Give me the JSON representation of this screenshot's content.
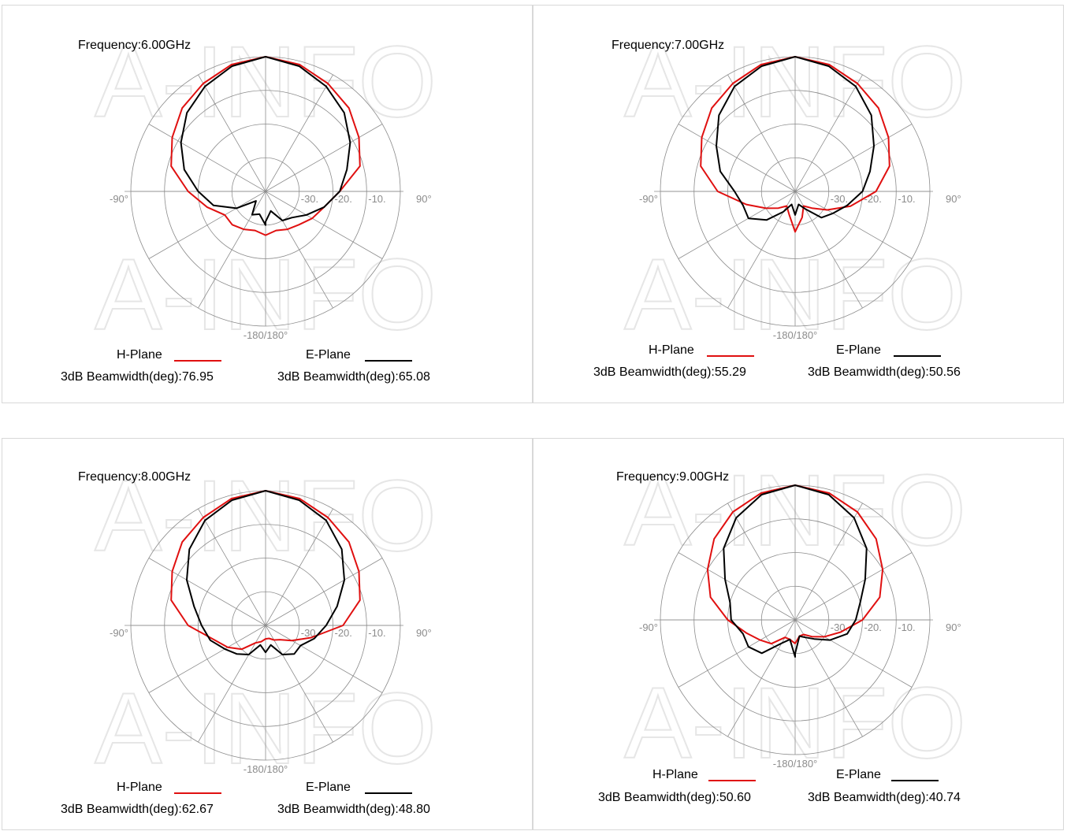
{
  "colors": {
    "h_plane": "#e01010",
    "e_plane": "#000000",
    "grid": "#8c8c8c",
    "watermark": "#e6e6e6"
  },
  "watermark_text": "A-INFO",
  "chart_data": [
    {
      "type": "polar",
      "title": "Frequency:6.00GHz",
      "angle_labels": {
        "left": "-90°",
        "right": "90°",
        "bottom": "-180/180°"
      },
      "radial_tick_labels": [
        "-30.",
        "-20.",
        "-10."
      ],
      "rlim_db": [
        -40,
        0
      ],
      "legend": [
        {
          "name": "H-Plane",
          "beamwidth_text": "3dB Beamwidth(deg):76.95",
          "color": "#e01010"
        },
        {
          "name": "E-Plane",
          "beamwidth_text": "3dB Beamwidth(deg):65.08",
          "color": "#000000"
        }
      ],
      "series": [
        {
          "name": "H-Plane",
          "theta_deg": [
            -180,
            -165,
            -150,
            -135,
            -120,
            -105,
            -90,
            -75,
            -60,
            -45,
            -30,
            -15,
            0,
            15,
            30,
            45,
            60,
            75,
            90,
            105,
            120,
            135,
            150,
            165,
            180
          ],
          "gain_db": [
            -27,
            -28,
            -27,
            -26,
            -26,
            -22,
            -17,
            -11,
            -8,
            -5,
            -3,
            -1,
            0,
            -1,
            -3,
            -5,
            -8,
            -11,
            -18,
            -22,
            -24,
            -26,
            -27,
            -28,
            -27
          ]
        },
        {
          "name": "E-Plane",
          "theta_deg": [
            -180,
            -165,
            -150,
            -135,
            -120,
            -105,
            -90,
            -75,
            -60,
            -45,
            -30,
            -15,
            0,
            15,
            30,
            45,
            60,
            75,
            90,
            105,
            120,
            135,
            150,
            165,
            180
          ],
          "gain_db": [
            -30,
            -33,
            -32,
            -36,
            -30,
            -24,
            -20,
            -15,
            -11,
            -7,
            -4,
            -1.5,
            0,
            -1.5,
            -4,
            -7,
            -11,
            -15,
            -18,
            -22,
            -26,
            -29,
            -30,
            -34,
            -31
          ]
        }
      ]
    },
    {
      "type": "polar",
      "title": "Frequency:7.00GHz",
      "angle_labels": {
        "left": "-90°",
        "right": "90°",
        "bottom": "-180/180°"
      },
      "radial_tick_labels": [
        "-30.",
        "-20.",
        "-10."
      ],
      "rlim_db": [
        -40,
        0
      ],
      "legend": [
        {
          "name": "H-Plane",
          "beamwidth_text": "3dB Beamwidth(deg):55.29",
          "color": "#e01010"
        },
        {
          "name": "E-Plane",
          "beamwidth_text": "3dB Beamwidth(deg):50.56",
          "color": "#000000"
        }
      ],
      "series": [
        {
          "name": "H-Plane",
          "theta_deg": [
            -180,
            -165,
            -150,
            -135,
            -120,
            -105,
            -90,
            -75,
            -60,
            -45,
            -30,
            -15,
            0,
            15,
            30,
            45,
            60,
            75,
            90,
            105,
            120,
            135,
            150,
            165,
            180
          ],
          "gain_db": [
            -28,
            -33,
            -35,
            -33,
            -30,
            -25,
            -17,
            -11,
            -8,
            -5,
            -3,
            -1,
            0,
            -1,
            -3,
            -5,
            -8,
            -11,
            -16,
            -23,
            -29,
            -33,
            -35,
            -32,
            -28
          ]
        },
        {
          "name": "E-Plane",
          "theta_deg": [
            -180,
            -165,
            -150,
            -135,
            -120,
            -105,
            -90,
            -75,
            -60,
            -45,
            -30,
            -15,
            0,
            15,
            30,
            45,
            60,
            75,
            90,
            105,
            120,
            135,
            150,
            165,
            180
          ],
          "gain_db": [
            -33,
            -36,
            -33,
            -28,
            -24,
            -24,
            -22,
            -17,
            -13,
            -8,
            -4,
            -1.5,
            0,
            -1.5,
            -4,
            -8,
            -13,
            -17,
            -20,
            -24,
            -27,
            -29,
            -34,
            -36,
            -33
          ]
        }
      ]
    },
    {
      "type": "polar",
      "title": "Frequency:8.00GHz",
      "angle_labels": {
        "left": "-90°",
        "right": "90°",
        "bottom": "-180/180°"
      },
      "radial_tick_labels": [
        "-30.",
        "-20.",
        "-10."
      ],
      "rlim_db": [
        -40,
        0
      ],
      "legend": [
        {
          "name": "H-Plane",
          "beamwidth_text": "3dB Beamwidth(deg):62.67",
          "color": "#e01010"
        },
        {
          "name": "E-Plane",
          "beamwidth_text": "3dB Beamwidth(deg):48.80",
          "color": "#000000"
        }
      ],
      "series": [
        {
          "name": "H-Plane",
          "theta_deg": [
            -180,
            -165,
            -150,
            -135,
            -120,
            -105,
            -90,
            -75,
            -60,
            -45,
            -30,
            -15,
            0,
            15,
            30,
            45,
            60,
            75,
            90,
            105,
            120,
            135,
            150,
            165,
            180
          ],
          "gain_db": [
            -36,
            -35,
            -34,
            -30,
            -27,
            -24,
            -17,
            -11,
            -8,
            -5,
            -3,
            -1,
            0,
            -1,
            -3,
            -5,
            -8,
            -11,
            -17,
            -26,
            -31,
            -34,
            -35,
            -36,
            -36
          ]
        },
        {
          "name": "E-Plane",
          "theta_deg": [
            -180,
            -165,
            -150,
            -135,
            -120,
            -105,
            -90,
            -75,
            -60,
            -45,
            -30,
            -15,
            0,
            15,
            30,
            45,
            60,
            75,
            90,
            105,
            120,
            135,
            150,
            165,
            180
          ],
          "gain_db": [
            -32,
            -34,
            -30,
            -28,
            -26,
            -23,
            -21,
            -18,
            -13,
            -8,
            -4,
            -1.5,
            0,
            -1.5,
            -4,
            -8,
            -13,
            -18,
            -22,
            -25,
            -28,
            -28,
            -30,
            -34,
            -32
          ]
        }
      ]
    },
    {
      "type": "polar",
      "title": "Frequency:9.00GHz",
      "angle_labels": {
        "left": "-90°",
        "right": "90°",
        "bottom": "-180/180°"
      },
      "radial_tick_labels": [
        "-30.",
        "-20.",
        "-10."
      ],
      "rlim_db": [
        -40,
        0
      ],
      "legend": [
        {
          "name": "H-Plane",
          "beamwidth_text": "3dB Beamwidth(deg):50.60",
          "color": "#e01010"
        },
        {
          "name": "E-Plane",
          "beamwidth_text": "3dB Beamwidth(deg):40.74",
          "color": "#000000"
        }
      ],
      "series": [
        {
          "name": "H-Plane",
          "theta_deg": [
            -180,
            -165,
            -150,
            -135,
            -120,
            -105,
            -90,
            -75,
            -60,
            -45,
            -30,
            -15,
            0,
            15,
            30,
            45,
            60,
            75,
            90,
            105,
            120,
            135,
            150,
            165,
            180
          ],
          "gain_db": [
            -33,
            -34,
            -34,
            -30,
            -28,
            -25,
            -20,
            -14,
            -10,
            -6,
            -3,
            -1,
            0,
            -1,
            -3,
            -6,
            -10,
            -14,
            -20,
            -26,
            -30,
            -33,
            -35,
            -35,
            -33
          ]
        },
        {
          "name": "E-Plane",
          "theta_deg": [
            -180,
            -165,
            -150,
            -135,
            -120,
            -105,
            -90,
            -75,
            -60,
            -45,
            -30,
            -15,
            0,
            15,
            30,
            45,
            60,
            75,
            90,
            105,
            120,
            135,
            150,
            165,
            180
          ],
          "gain_db": [
            -29,
            -34,
            -32,
            -26,
            -24,
            -24,
            -21,
            -20,
            -16,
            -10,
            -5,
            -1.5,
            0,
            -1.5,
            -5,
            -10,
            -16,
            -20,
            -22,
            -24,
            -28,
            -32,
            -34,
            -35,
            -30
          ]
        }
      ]
    }
  ]
}
